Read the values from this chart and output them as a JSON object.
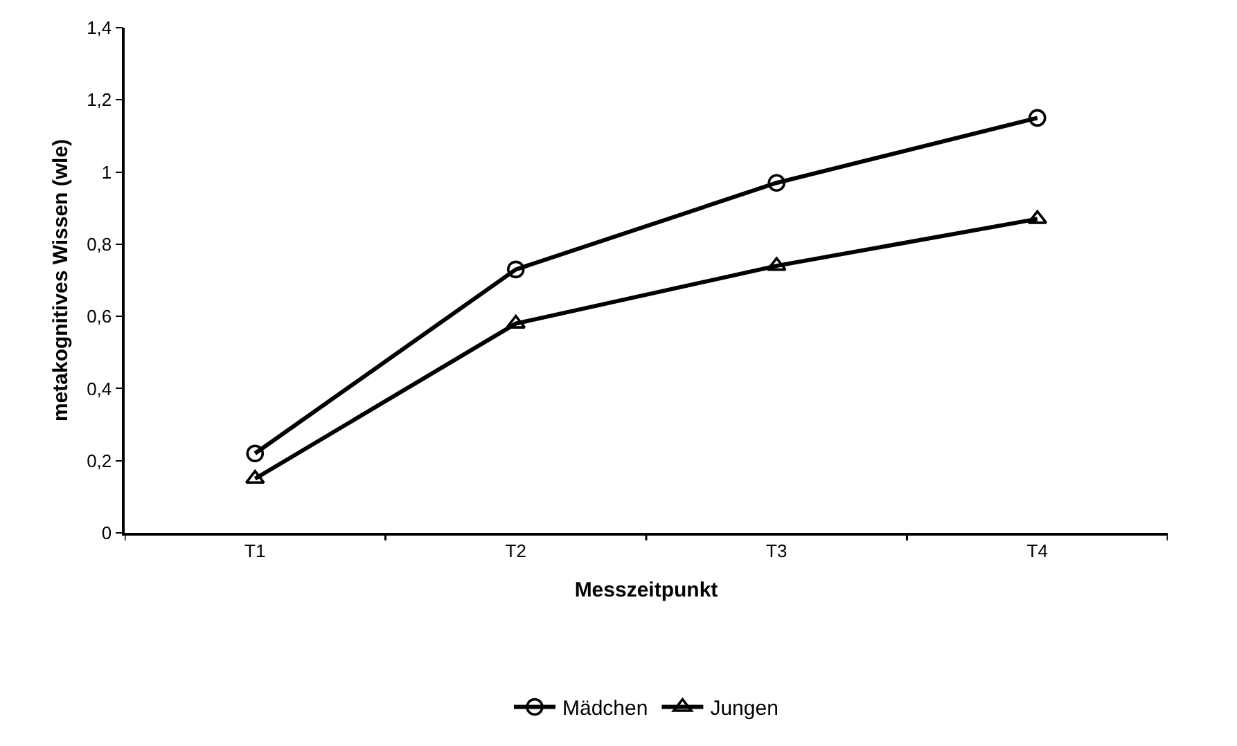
{
  "chart_data": {
    "type": "line",
    "xlabel": "Messzeitpunkt",
    "ylabel": "metakognitives Wissen (wle)",
    "categories": [
      "T1",
      "T2",
      "T3",
      "T4"
    ],
    "series": [
      {
        "name": "Mädchen",
        "color": "#000000",
        "marker": "circle",
        "values": [
          0.22,
          0.73,
          0.97,
          1.15
        ]
      },
      {
        "name": "Jungen",
        "color": "#000000",
        "marker": "triangle",
        "values": [
          0.15,
          0.58,
          0.74,
          0.87
        ]
      }
    ],
    "ylim": [
      0,
      1.4
    ],
    "yticks": [
      0,
      {
        "value": 0.2,
        "label": "0,2"
      },
      {
        "value": 0.4,
        "label": "0,4"
      },
      {
        "value": 0.6,
        "label": "0,6"
      },
      {
        "value": 0.8,
        "label": "0,8"
      },
      1,
      {
        "value": 1.2,
        "label": "1,2"
      },
      {
        "value": 1.4,
        "label": "1,4"
      }
    ],
    "grid": false,
    "legend": "bottom",
    "line_style": "solid"
  }
}
